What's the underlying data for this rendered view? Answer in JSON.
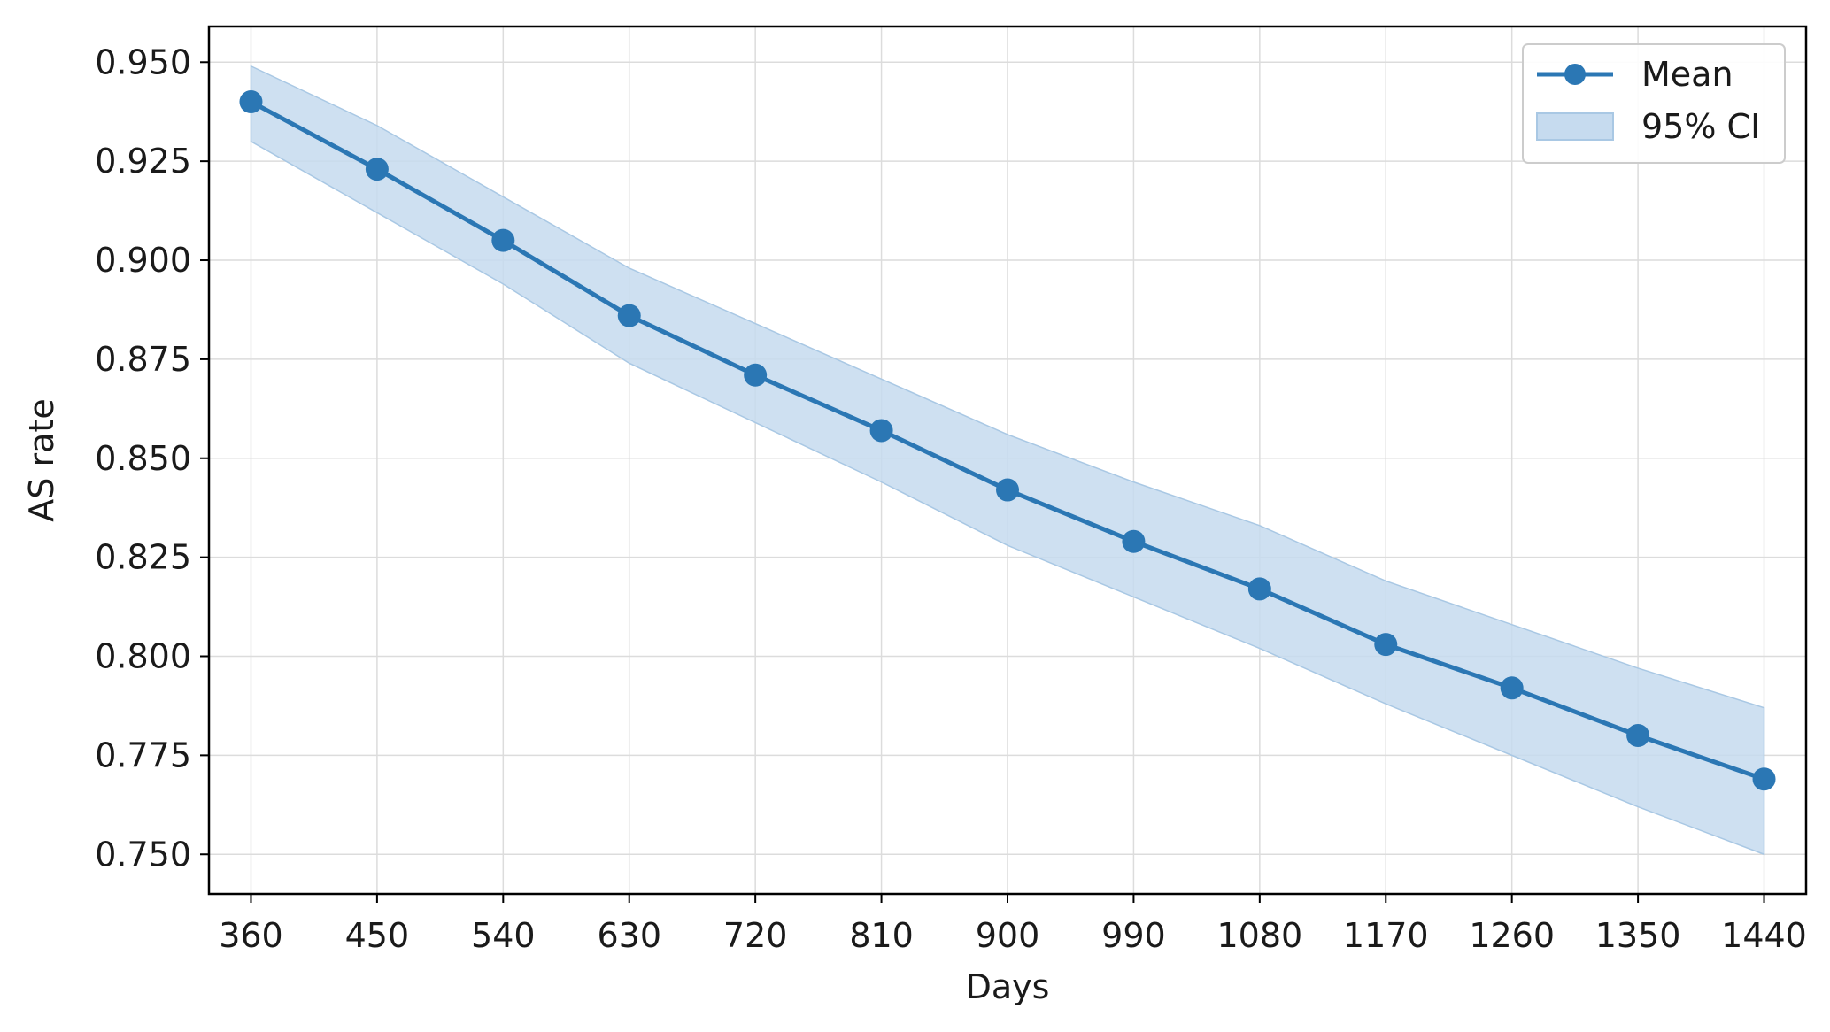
{
  "chart_data": {
    "type": "line",
    "title": "",
    "xlabel": "Days",
    "ylabel": "AS rate",
    "xlim": [
      330,
      1470
    ],
    "ylim": [
      0.74,
      0.959
    ],
    "grid": true,
    "legend_position": "top-right",
    "x": [
      360,
      450,
      540,
      630,
      720,
      810,
      900,
      990,
      1080,
      1170,
      1260,
      1350,
      1440
    ],
    "x_ticks": [
      "360",
      "450",
      "540",
      "630",
      "720",
      "810",
      "900",
      "990",
      "1080",
      "1170",
      "1260",
      "1350",
      "1440"
    ],
    "y_ticks": [
      "0.750",
      "0.775",
      "0.800",
      "0.825",
      "0.850",
      "0.875",
      "0.900",
      "0.925",
      "0.950"
    ],
    "series": [
      {
        "name": "Mean",
        "kind": "line-marker",
        "color": "#2b77b4",
        "values": [
          0.94,
          0.923,
          0.905,
          0.886,
          0.871,
          0.857,
          0.842,
          0.829,
          0.817,
          0.803,
          0.792,
          0.78,
          0.769
        ]
      },
      {
        "name": "95% CI",
        "kind": "band",
        "color": "#c6dbef",
        "lower": [
          0.93,
          0.912,
          0.894,
          0.874,
          0.859,
          0.844,
          0.828,
          0.815,
          0.802,
          0.788,
          0.775,
          0.762,
          0.75
        ],
        "upper": [
          0.949,
          0.934,
          0.916,
          0.898,
          0.884,
          0.87,
          0.856,
          0.844,
          0.833,
          0.819,
          0.808,
          0.797,
          0.787
        ]
      }
    ]
  }
}
